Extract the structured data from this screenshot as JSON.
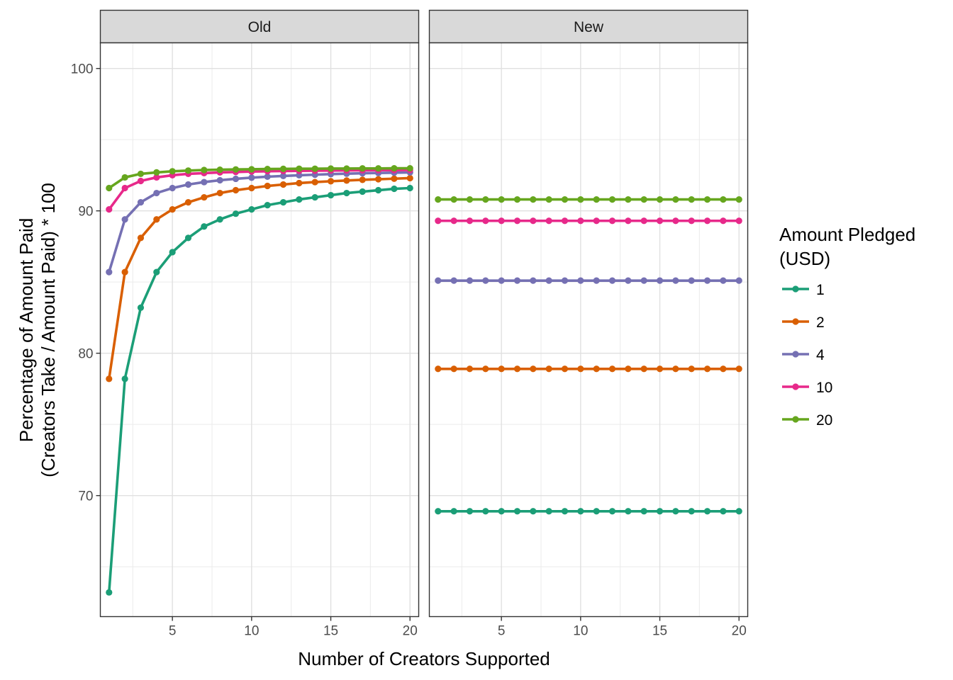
{
  "chart_data": {
    "type": "line",
    "facets": [
      "Old",
      "New"
    ],
    "x": [
      1,
      2,
      3,
      4,
      5,
      6,
      7,
      8,
      9,
      10,
      11,
      12,
      13,
      14,
      15,
      16,
      17,
      18,
      19,
      20
    ],
    "xlabel": "Number of Creators Supported",
    "ylabel_line1": "Percentage of Amount Paid",
    "ylabel_line2": "(Creators Take / Amount Paid) * 100",
    "xticks": [
      5,
      10,
      15,
      20
    ],
    "yticks": [
      70,
      80,
      90,
      100
    ],
    "xlim": [
      0.45,
      20.55
    ],
    "ylim": [
      61.5,
      101.8
    ],
    "grid": true,
    "legend_placement": "right",
    "legend_title_line1": "Amount Pledged",
    "legend_title_line2": "(USD)",
    "series": [
      {
        "name": "1",
        "color": "#1b9e77",
        "old": [
          63.2,
          78.2,
          83.2,
          85.7,
          87.1,
          88.1,
          88.9,
          89.4,
          89.8,
          90.1,
          90.4,
          90.6,
          90.8,
          90.95,
          91.1,
          91.25,
          91.35,
          91.45,
          91.55,
          91.6
        ],
        "new": [
          68.9,
          68.9,
          68.9,
          68.9,
          68.9,
          68.9,
          68.9,
          68.9,
          68.9,
          68.9,
          68.9,
          68.9,
          68.9,
          68.9,
          68.9,
          68.9,
          68.9,
          68.9,
          68.9,
          68.9
        ]
      },
      {
        "name": "2",
        "color": "#d95f02",
        "old": [
          78.2,
          85.7,
          88.1,
          89.4,
          90.1,
          90.6,
          90.95,
          91.25,
          91.45,
          91.6,
          91.75,
          91.85,
          91.95,
          92.02,
          92.08,
          92.13,
          92.18,
          92.22,
          92.26,
          92.3
        ],
        "new": [
          78.9,
          78.9,
          78.9,
          78.9,
          78.9,
          78.9,
          78.9,
          78.9,
          78.9,
          78.9,
          78.9,
          78.9,
          78.9,
          78.9,
          78.9,
          78.9,
          78.9,
          78.9,
          78.9,
          78.9
        ]
      },
      {
        "name": "4",
        "color": "#7570b3",
        "old": [
          85.7,
          89.4,
          90.6,
          91.25,
          91.6,
          91.85,
          92.02,
          92.15,
          92.25,
          92.33,
          92.4,
          92.45,
          92.5,
          92.54,
          92.58,
          92.61,
          92.64,
          92.66,
          92.68,
          92.7
        ],
        "new": [
          85.1,
          85.1,
          85.1,
          85.1,
          85.1,
          85.1,
          85.1,
          85.1,
          85.1,
          85.1,
          85.1,
          85.1,
          85.1,
          85.1,
          85.1,
          85.1,
          85.1,
          85.1,
          85.1,
          85.1
        ]
      },
      {
        "name": "10",
        "color": "#e7298a",
        "old": [
          90.1,
          91.6,
          92.1,
          92.35,
          92.5,
          92.6,
          92.65,
          92.7,
          92.73,
          92.76,
          92.78,
          92.8,
          92.81,
          92.82,
          92.83,
          92.84,
          92.85,
          92.86,
          92.86,
          92.87
        ],
        "new": [
          89.3,
          89.3,
          89.3,
          89.3,
          89.3,
          89.3,
          89.3,
          89.3,
          89.3,
          89.3,
          89.3,
          89.3,
          89.3,
          89.3,
          89.3,
          89.3,
          89.3,
          89.3,
          89.3,
          89.3
        ]
      },
      {
        "name": "20",
        "color": "#66a61e",
        "old": [
          91.6,
          92.35,
          92.6,
          92.7,
          92.78,
          92.83,
          92.87,
          92.89,
          92.91,
          92.92,
          92.94,
          92.95,
          92.96,
          92.96,
          92.97,
          92.97,
          92.98,
          92.98,
          92.99,
          92.99
        ],
        "new": [
          90.8,
          90.8,
          90.8,
          90.8,
          90.8,
          90.8,
          90.8,
          90.8,
          90.8,
          90.8,
          90.8,
          90.8,
          90.8,
          90.8,
          90.8,
          90.8,
          90.8,
          90.8,
          90.8,
          90.8
        ]
      }
    ]
  }
}
